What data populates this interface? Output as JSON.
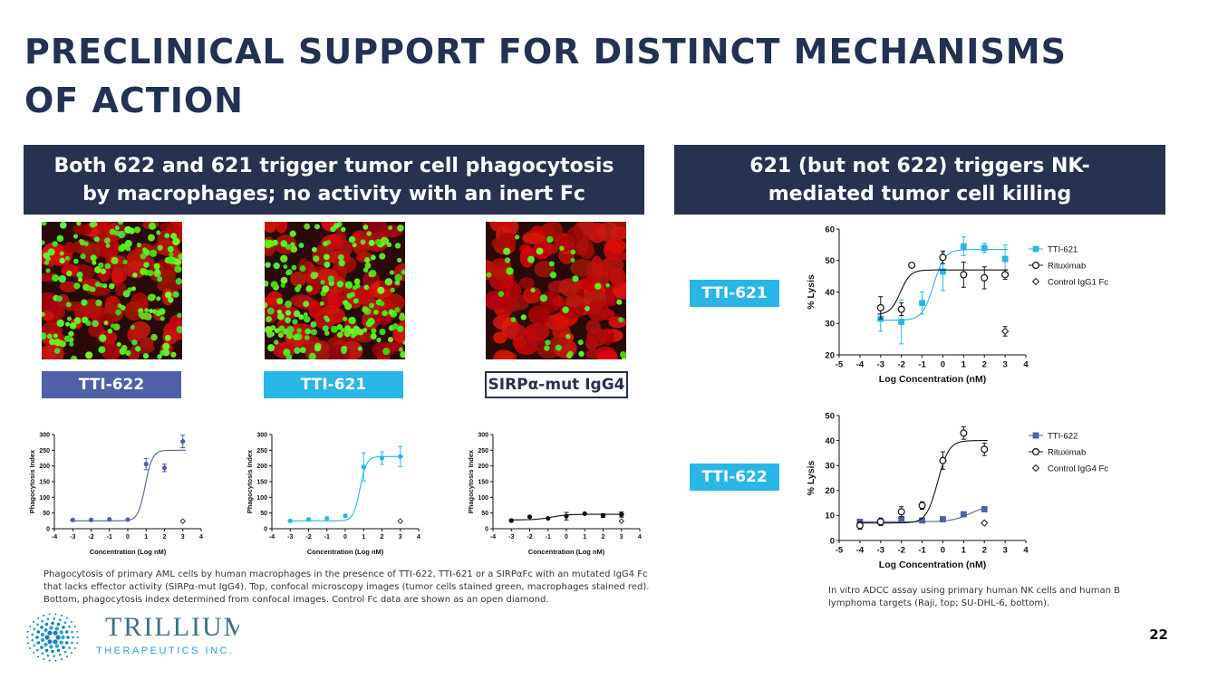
{
  "slide": {
    "title_line1": "PRECLINICAL SUPPORT FOR DISTINCT MECHANISMS",
    "title_line2": "OF ACTION",
    "page_number": "22"
  },
  "colors": {
    "navy": "#26324f",
    "tti622": "#4f5fa8",
    "tti621": "#29b6e6",
    "black": "#111111"
  },
  "left_panel": {
    "banner_line1": "Both 622 and 621 trigger tumor cell phagocytosis",
    "banner_line2": "by macrophages; no activity with an inert Fc",
    "labels": [
      "TTI-622",
      "TTI-621",
      "SIRPα-mut IgG4"
    ],
    "caption_lines": [
      "Phagocytosis of primary AML cells by human macrophages in the presence of TTI-622, TTI-621 or a SIRPαFc with an mutated IgG4 Fc",
      "that lacks effector activity (SIRPα-mut IgG4). Top, confocal microscopy images (tumor cells stained green, macrophages stained red).",
      "Bottom, phagocytosis index determined from confocal images. Control Fc data are shown as an open diamond."
    ]
  },
  "right_panel": {
    "banner_line1": "621 (but not 622) triggers NK-",
    "banner_line2": "mediated tumor cell killing",
    "labels": [
      "TTI-621",
      "TTI-622"
    ],
    "caption_lines": [
      "In vitro ADCC assay using primary human NK cells and human B",
      "lymphoma targets (Raji, top; SU-DHL-6, bottom)."
    ]
  },
  "logo": {
    "name": "TRILLIUM",
    "sub": "THERAPEUTICS INC."
  },
  "chart_data": [
    {
      "type": "scatter",
      "id": "phago-622",
      "xlabel": "Concentration (Log nM)",
      "ylabel": "Phagocytosis Index",
      "xlim": [
        -4,
        4
      ],
      "ylim": [
        0,
        300
      ],
      "xticks": [
        -4,
        -3,
        -2,
        -1,
        0,
        1,
        2,
        3,
        4
      ],
      "yticks": [
        0,
        50,
        100,
        150,
        200,
        250,
        300
      ],
      "series": [
        {
          "color": "#4f5fa8",
          "marker": "circle-filled",
          "x": [
            -3,
            -2,
            -1,
            0,
            1,
            2,
            3
          ],
          "y": [
            28,
            28,
            30,
            29,
            206,
            194,
            278
          ],
          "err": [
            0,
            0,
            0,
            0,
            18,
            12,
            20
          ],
          "fit": {
            "bottom": 25,
            "top": 250,
            "ec50": 0.95,
            "slope": 2.2
          }
        },
        {
          "color": "#333333",
          "marker": "diamond-open",
          "x": [
            3
          ],
          "y": [
            24
          ],
          "err": [
            0
          ]
        }
      ]
    },
    {
      "type": "scatter",
      "id": "phago-621",
      "xlabel": "Concentration (Log nM)",
      "ylabel": "Phagocytosis Index",
      "xlim": [
        -4,
        4
      ],
      "ylim": [
        0,
        300
      ],
      "xticks": [
        -4,
        -3,
        -2,
        -1,
        0,
        1,
        2,
        3,
        4
      ],
      "yticks": [
        0,
        50,
        100,
        150,
        200,
        250,
        300
      ],
      "series": [
        {
          "color": "#29b6e6",
          "marker": "circle-filled",
          "x": [
            -3,
            -2,
            -1,
            0,
            1,
            2,
            3
          ],
          "y": [
            25,
            30,
            33,
            41,
            197,
            225,
            230
          ],
          "err": [
            0,
            0,
            0,
            0,
            45,
            20,
            32
          ],
          "fit": {
            "bottom": 25,
            "top": 230,
            "ec50": 0.8,
            "slope": 2.4
          }
        },
        {
          "color": "#333333",
          "marker": "diamond-open",
          "x": [
            3
          ],
          "y": [
            24
          ],
          "err": [
            0
          ]
        }
      ]
    },
    {
      "type": "scatter",
      "id": "phago-mut",
      "xlabel": "Concentration (Log nM)",
      "ylabel": "Phagocytosis Index",
      "xlim": [
        -4,
        4
      ],
      "ylim": [
        0,
        300
      ],
      "xticks": [
        -4,
        -3,
        -2,
        -1,
        0,
        1,
        2,
        3,
        4
      ],
      "yticks": [
        0,
        50,
        100,
        150,
        200,
        250,
        300
      ],
      "series": [
        {
          "color": "#111111",
          "marker": "circle-filled",
          "x": [
            -3,
            -2,
            -1,
            0,
            1,
            2,
            3
          ],
          "y": [
            26,
            38,
            33,
            40,
            48,
            42,
            45
          ],
          "err": [
            0,
            0,
            0,
            12,
            0,
            6,
            8
          ],
          "fit": {
            "bottom": 28,
            "top": 46,
            "ec50": -0.8,
            "slope": 1.0
          }
        },
        {
          "color": "#333333",
          "marker": "diamond-open",
          "x": [
            3
          ],
          "y": [
            24
          ],
          "err": [
            0
          ]
        }
      ]
    },
    {
      "type": "scatter",
      "id": "adcc-621",
      "xlabel": "Log Concentration (nM)",
      "ylabel": "% Lysis",
      "xlim": [
        -5,
        4
      ],
      "ylim": [
        20,
        60
      ],
      "xticks": [
        -5,
        -4,
        -3,
        -2,
        -1,
        0,
        1,
        2,
        3,
        4
      ],
      "yticks": [
        20,
        30,
        40,
        50,
        60
      ],
      "legend": [
        {
          "name": "TTI-621",
          "marker": "square-filled",
          "color": "#29b6e6"
        },
        {
          "name": "Rituximab",
          "marker": "circle-open",
          "color": "#111111"
        },
        {
          "name": "Control IgG1 Fc",
          "marker": "diamond-open",
          "color": "#111111"
        }
      ],
      "series": [
        {
          "name": "TTI-621",
          "color": "#29b6e6",
          "marker": "square-filled",
          "x": [
            -3,
            -2,
            -1,
            0,
            1,
            2,
            3
          ],
          "y": [
            31.5,
            30.5,
            36.5,
            46.5,
            54.5,
            54,
            50.5
          ],
          "err": [
            4,
            7,
            3.5,
            6,
            3,
            1.5,
            4.5
          ],
          "fit": {
            "bottom": 31,
            "top": 53.5,
            "ec50": -0.45,
            "slope": 1.6
          }
        },
        {
          "name": "Rituximab",
          "color": "#111111",
          "marker": "circle-open",
          "x": [
            -3,
            -2,
            -1.5,
            0,
            1,
            2,
            3
          ],
          "y": [
            35,
            34.5,
            48.5,
            51,
            45.5,
            44.5,
            45.5
          ],
          "err": [
            3.5,
            2,
            0,
            2,
            4,
            3.5,
            1.5
          ],
          "fit": {
            "bottom": 32.8,
            "top": 47,
            "ec50": -2.05,
            "slope": 1.8
          }
        },
        {
          "name": "Control IgG1 Fc",
          "color": "#111111",
          "marker": "diamond-open",
          "x": [
            3
          ],
          "y": [
            27.5
          ],
          "err": [
            1.5
          ]
        }
      ]
    },
    {
      "type": "scatter",
      "id": "adcc-622",
      "xlabel": "Log Concentration (nM)",
      "ylabel": "% Lysis",
      "xlim": [
        -5,
        4
      ],
      "ylim": [
        0,
        50
      ],
      "xticks": [
        -5,
        -4,
        -3,
        -2,
        -1,
        0,
        1,
        2,
        3,
        4
      ],
      "yticks": [
        0,
        10,
        20,
        30,
        40,
        50
      ],
      "legend": [
        {
          "name": "TTI-622",
          "marker": "square-filled",
          "color": "#4f5fa8"
        },
        {
          "name": "Rituximab",
          "marker": "circle-open",
          "color": "#111111"
        },
        {
          "name": "Control IgG4 Fc",
          "marker": "diamond-open",
          "color": "#111111"
        }
      ],
      "series": [
        {
          "name": "TTI-622",
          "color": "#4f5fa8",
          "marker": "square-filled",
          "x": [
            -4,
            -3,
            -2,
            -1,
            0,
            1,
            2
          ],
          "y": [
            7.5,
            7.5,
            8.5,
            8,
            8.5,
            10.5,
            12.5
          ],
          "err": [
            0,
            0,
            0,
            0,
            0,
            0,
            0
          ],
          "fit": {
            "bottom": 7.5,
            "top": 14,
            "ec50": 1.3,
            "slope": 1.0
          }
        },
        {
          "name": "Rituximab",
          "color": "#111111",
          "marker": "circle-open",
          "x": [
            -4,
            -3,
            -2,
            -1,
            0,
            1,
            2
          ],
          "y": [
            6,
            7.5,
            11.5,
            14,
            32,
            43,
            36.5
          ],
          "err": [
            1.5,
            1.5,
            2,
            1.5,
            3.5,
            2.5,
            2.5
          ],
          "fit": {
            "bottom": 7,
            "top": 40,
            "ec50": -0.25,
            "slope": 1.6
          }
        },
        {
          "name": "Control IgG4 Fc",
          "color": "#111111",
          "marker": "diamond-open",
          "x": [
            2
          ],
          "y": [
            7
          ],
          "err": [
            0
          ]
        }
      ]
    }
  ]
}
